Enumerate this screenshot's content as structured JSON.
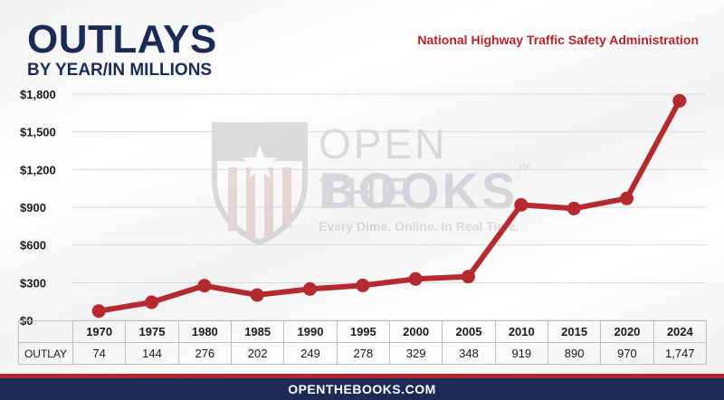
{
  "header": {
    "title": "OUTLAYS",
    "subtitle": "BY YEAR/IN MILLIONS",
    "source": "National Highway Traffic Safety Administration"
  },
  "watermark": {
    "line1": "OPEN THE",
    "line2": "BOOKS",
    "trademark": "™",
    "tagline": "Every Dime. Online. In Real Time."
  },
  "footer": {
    "text": "OPENTHEBOOKS.COM"
  },
  "colors": {
    "navy": "#1b2b55",
    "red": "#b4242a",
    "line": "#b52a2e"
  },
  "chart_data": {
    "type": "line",
    "x": [
      "1970",
      "1975",
      "1980",
      "1985",
      "1990",
      "1995",
      "2000",
      "2005",
      "2010",
      "2015",
      "2020",
      "2024"
    ],
    "values": [
      74,
      144,
      276,
      202,
      249,
      278,
      329,
      348,
      919,
      890,
      970,
      1747
    ],
    "value_labels": [
      "74",
      "144",
      "276",
      "202",
      "249",
      "278",
      "329",
      "348",
      "919",
      "890",
      "970",
      "1,747"
    ],
    "row_label": "OUTLAY",
    "ylim": [
      0,
      1800
    ],
    "yticks": [
      0,
      300,
      600,
      900,
      1200,
      1500,
      1800
    ],
    "ytick_labels": [
      "$0",
      "$300",
      "$600",
      "$900",
      "$1,200",
      "$1,500",
      "$1,800"
    ],
    "grid": true,
    "legend": "none"
  }
}
